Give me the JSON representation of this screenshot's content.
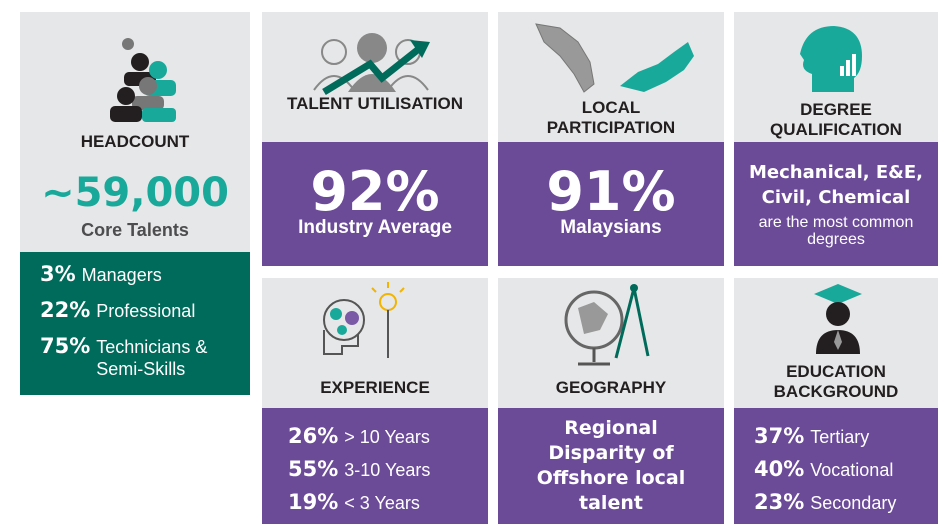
{
  "headcount": {
    "title": "HEADCOUNT",
    "value": "~59,000",
    "label": "Core Talents",
    "breakdown": [
      {
        "value": "3%",
        "label": "Managers"
      },
      {
        "value": "22%",
        "label": "Professional"
      },
      {
        "value": "75%",
        "label": "Technicians & Semi-Skills"
      }
    ]
  },
  "talent_utilisation": {
    "title": "TALENT UTILISATION",
    "value": "92%",
    "label": "Industry Average"
  },
  "local_participation": {
    "title": "LOCAL PARTICIPATION",
    "value": "91%",
    "label": "Malaysians"
  },
  "degree_qualification": {
    "title": "DEGREE QUALIFICATION",
    "highlight": "Mechanical, E&E, Civil, Chemical",
    "label": "are the most common degrees"
  },
  "experience": {
    "title": "EXPERIENCE",
    "breakdown": [
      {
        "value": "26%",
        "label": "> 10 Years"
      },
      {
        "value": "55%",
        "label": "3-10 Years"
      },
      {
        "value": "19%",
        "label": "< 3 Years"
      }
    ]
  },
  "geography": {
    "title": "GEOGRAPHY",
    "text": "Regional Disparity of Offshore local talent"
  },
  "education_background": {
    "title": "EDUCATION BACKGROUND",
    "breakdown": [
      {
        "value": "37%",
        "label": "Tertiary"
      },
      {
        "value": "40%",
        "label": "Vocational"
      },
      {
        "value": "23%",
        "label": "Secondary"
      }
    ]
  }
}
